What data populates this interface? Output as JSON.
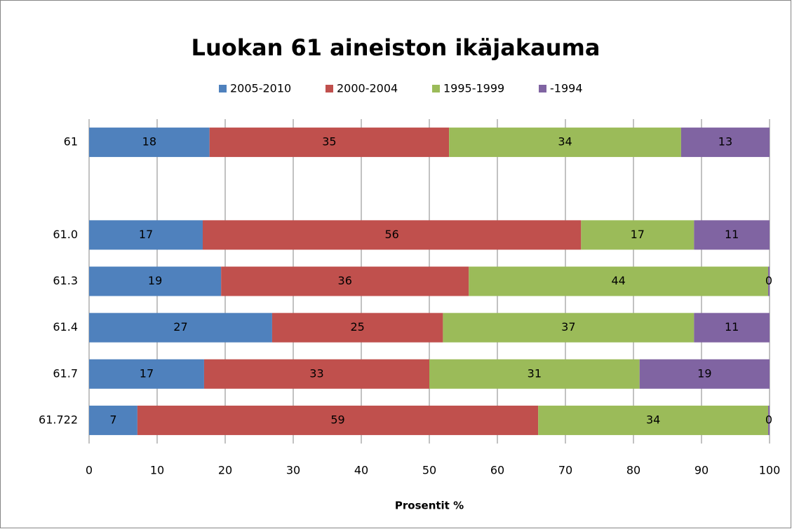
{
  "chart_data": {
    "type": "stacked-barh",
    "title": "Luokan 61 aineiston ikäjakauma",
    "x_label": "Prosentit %",
    "categories": [
      "61",
      null,
      "61.0",
      "61.3",
      "61.4",
      "61.7",
      "61.722"
    ],
    "series": [
      {
        "name": "2005-2010",
        "color": "#4f81bd",
        "values": [
          17.7,
          null,
          16.7,
          19.4,
          26.9,
          16.9,
          7.1
        ],
        "value_labels": [
          "18",
          null,
          "17",
          "19",
          "27",
          "17",
          "7"
        ]
      },
      {
        "name": "2000-2004",
        "color": "#c0504d",
        "values": [
          35.2,
          null,
          55.6,
          36.4,
          25.1,
          33.1,
          58.9
        ],
        "value_labels": [
          "35",
          null,
          "56",
          "36",
          "25",
          "33",
          "59"
        ]
      },
      {
        "name": "1995-1999",
        "color": "#9bbb59",
        "values": [
          34.1,
          null,
          16.6,
          44.0,
          36.9,
          30.9,
          33.8
        ],
        "value_labels": [
          "34",
          null,
          "17",
          "44",
          "37",
          "31",
          "34"
        ]
      },
      {
        "name": "-1994",
        "color": "#8064a2",
        "values": [
          13.0,
          null,
          11.1,
          0.2,
          11.1,
          19.1,
          0.2
        ],
        "value_labels": [
          "13",
          null,
          "11",
          "0",
          "11",
          "19",
          "0"
        ]
      }
    ],
    "xlim": [
      0,
      100
    ],
    "xticks": [
      0,
      10,
      20,
      30,
      40,
      50,
      60,
      70,
      80,
      90,
      100
    ],
    "grid": true,
    "legend": "top"
  }
}
